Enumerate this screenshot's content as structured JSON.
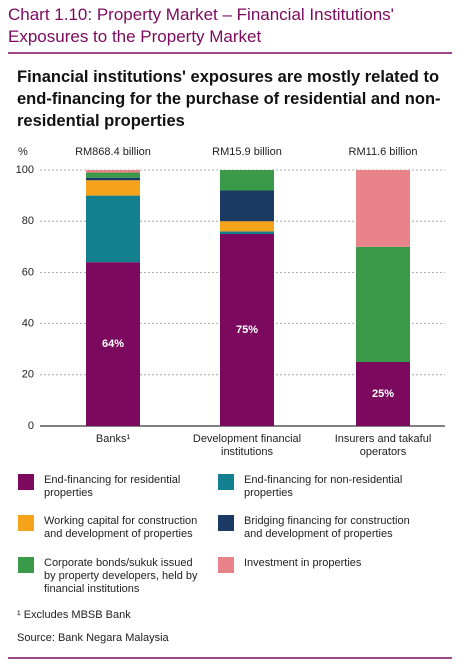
{
  "chart_data": {
    "type": "stacked_bar",
    "title": "Chart 1.10: Property Market – Financial Institutions' Exposures to the Property Market",
    "subtitle": "Financial institutions' exposures are mostly related to end-financing for the purchase of residential and non-residential properties",
    "y_unit": "%",
    "categories": [
      "Banks¹",
      "Development financial institutions",
      "Insurers and takaful operators"
    ],
    "bar_totals": [
      "RM868.4 billion",
      "RM15.9 billion",
      "RM11.6 billion"
    ],
    "series": [
      {
        "name": "End-financing for residential properties",
        "color": "#7b0a5e",
        "values": [
          64,
          75,
          25
        ],
        "value_labels": [
          "64%",
          "75%",
          "25%"
        ]
      },
      {
        "name": "End-financing for non-residential properties",
        "color": "#13808f",
        "values": [
          26,
          1,
          0
        ]
      },
      {
        "name": "Working capital for construction and development of properties",
        "color": "#f5a31a",
        "values": [
          6,
          4,
          0
        ]
      },
      {
        "name": "Bridging financing for construction and development of properties",
        "color": "#1b3a63",
        "values": [
          1,
          12,
          0
        ]
      },
      {
        "name": "Corporate bonds/sukuk issued by property developers, held by financial institutions",
        "color": "#3b9a4a",
        "values": [
          2,
          8,
          45
        ]
      },
      {
        "name": "Investment in properties",
        "color": "#e8838a",
        "values": [
          1,
          0,
          30
        ]
      }
    ],
    "ylim": [
      0,
      100
    ],
    "yticks": [
      0,
      20,
      40,
      60,
      80,
      100
    ],
    "grid": true,
    "footnote": "¹ Excludes MBSB Bank",
    "source": "Source: Bank Negara Malaysia"
  }
}
